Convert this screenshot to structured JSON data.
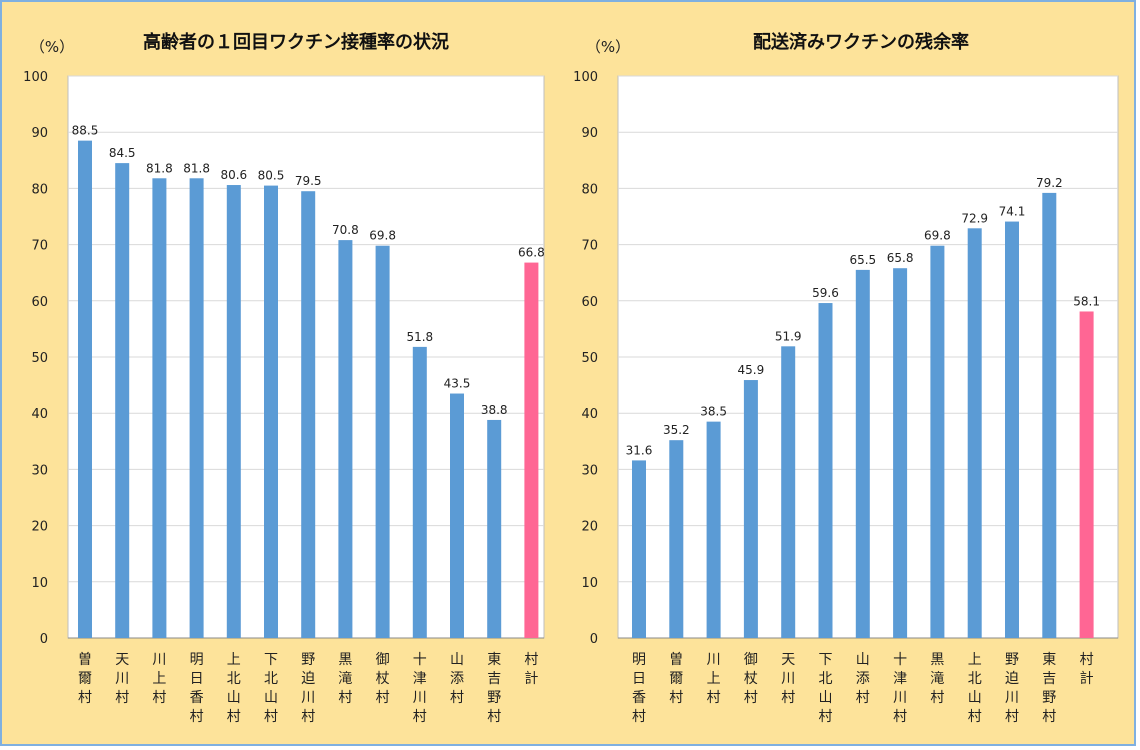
{
  "chart_data": [
    {
      "type": "bar",
      "title": "高齢者の１回目ワクチン接種率の状況",
      "unit_label": "（%）",
      "ylim": [
        0,
        100
      ],
      "yticks": [
        0,
        10,
        20,
        30,
        40,
        50,
        60,
        70,
        80,
        90,
        100
      ],
      "grid": true,
      "categories": [
        "曽爾村",
        "天川村",
        "川上村",
        "明日香村",
        "上北山村",
        "下北山村",
        "野迫川村",
        "黒滝村",
        "御杖村",
        "十津川村",
        "山添村",
        "東吉野村",
        "村計"
      ],
      "values": [
        88.5,
        84.5,
        81.8,
        81.8,
        80.6,
        80.5,
        79.5,
        70.8,
        69.8,
        51.8,
        43.5,
        38.8,
        66.8
      ],
      "data_labels": [
        "88.5",
        "84.5",
        "81.8",
        "81.8",
        "80.6",
        "80.5",
        "79.5",
        "70.8",
        "69.8",
        "51.8",
        "43.5",
        "38.8",
        "66.8"
      ],
      "bar_colors": [
        "#5b9bd5",
        "#5b9bd5",
        "#5b9bd5",
        "#5b9bd5",
        "#5b9bd5",
        "#5b9bd5",
        "#5b9bd5",
        "#5b9bd5",
        "#5b9bd5",
        "#5b9bd5",
        "#5b9bd5",
        "#5b9bd5",
        "#ff6694"
      ]
    },
    {
      "type": "bar",
      "title": "配送済みワクチンの残余率",
      "unit_label": "（%）",
      "ylim": [
        0,
        100
      ],
      "yticks": [
        0,
        10,
        20,
        30,
        40,
        50,
        60,
        70,
        80,
        90,
        100
      ],
      "grid": true,
      "categories": [
        "明日香村",
        "曽爾村",
        "川上村",
        "御杖村",
        "天川村",
        "下北山村",
        "山添村",
        "十津川村",
        "黒滝村",
        "上北山村",
        "野迫川村",
        "東吉野村",
        "村計"
      ],
      "values": [
        31.6,
        35.2,
        38.5,
        45.9,
        51.9,
        59.6,
        65.5,
        65.8,
        69.8,
        72.9,
        74.1,
        79.2,
        58.1
      ],
      "data_labels": [
        "31.6",
        "35.2",
        "38.5",
        "45.9",
        "51.9",
        "59.6",
        "65.5",
        "65.8",
        "69.8",
        "72.9",
        "74.1",
        "79.2",
        "58.1"
      ],
      "bar_colors": [
        "#5b9bd5",
        "#5b9bd5",
        "#5b9bd5",
        "#5b9bd5",
        "#5b9bd5",
        "#5b9bd5",
        "#5b9bd5",
        "#5b9bd5",
        "#5b9bd5",
        "#5b9bd5",
        "#5b9bd5",
        "#5b9bd5",
        "#ff6694"
      ]
    }
  ]
}
